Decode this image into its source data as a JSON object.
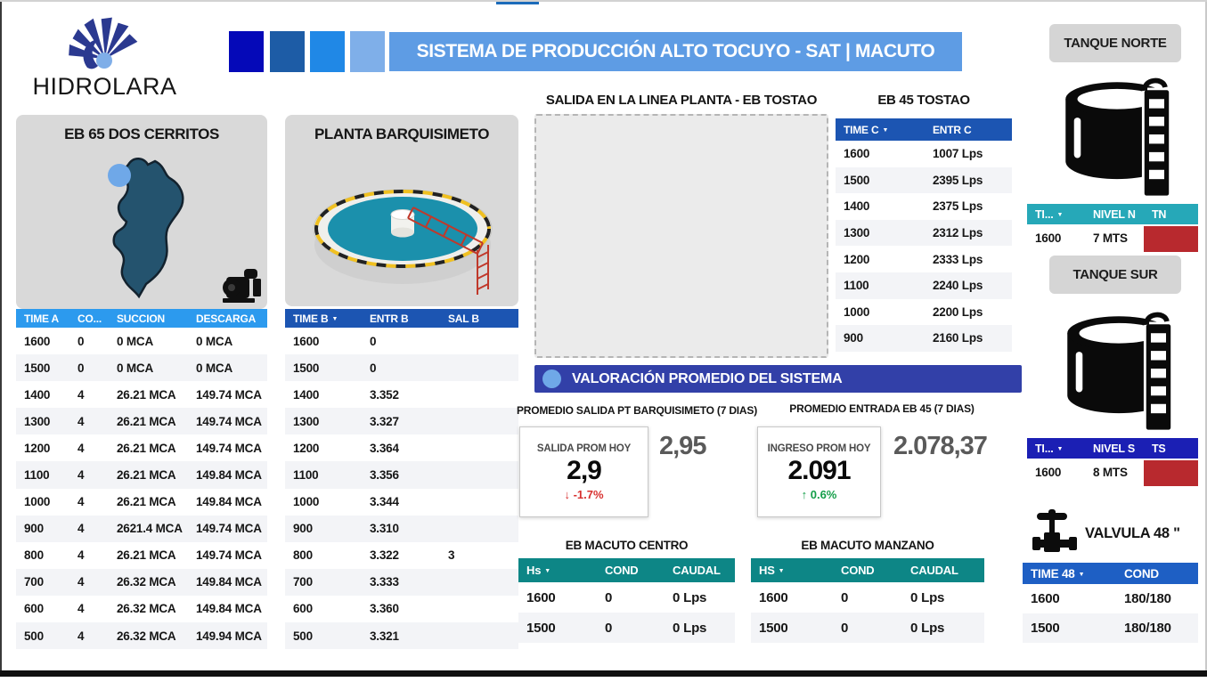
{
  "header": {
    "logo_text": "HIDROLARA",
    "title": "SISTEMA DE PRODUCCIÓN ALTO TOCUYO - SAT | MACUTO",
    "square_colors": [
      "#0509b8",
      "#1d5ca6",
      "#2088e6",
      "#7fafe9"
    ],
    "banner_color": "#5e9ce4"
  },
  "eb65": {
    "title": "EB 65 DOS CERRITOS",
    "table": {
      "headers": [
        "TIME A",
        "CO...",
        "SUCCION",
        "DESCARGA"
      ],
      "rows": [
        [
          "1600",
          "0",
          "0 MCA",
          "0 MCA"
        ],
        [
          "1500",
          "0",
          "0 MCA",
          "0 MCA"
        ],
        [
          "1400",
          "4",
          "26.21 MCA",
          "149.74 MCA"
        ],
        [
          "1300",
          "4",
          "26.21 MCA",
          "149.74 MCA"
        ],
        [
          "1200",
          "4",
          "26.21 MCA",
          "149.74 MCA"
        ],
        [
          "1100",
          "4",
          "26.21 MCA",
          "149.84 MCA"
        ],
        [
          "1000",
          "4",
          "26.21 MCA",
          "149.84 MCA"
        ],
        [
          "900",
          "4",
          "2621.4 MCA",
          "149.74 MCA"
        ],
        [
          "800",
          "4",
          "26.21 MCA",
          "149.74 MCA"
        ],
        [
          "700",
          "4",
          "26.32 MCA",
          "149.84 MCA"
        ],
        [
          "600",
          "4",
          "26.32 MCA",
          "149.84 MCA"
        ],
        [
          "500",
          "4",
          "26.32 MCA",
          "149.94 MCA"
        ]
      ],
      "header_color": "#2c9aee"
    }
  },
  "planta": {
    "title": "PLANTA BARQUISIMETO",
    "table": {
      "headers": [
        "TIME B",
        "ENTR B",
        "SAL B"
      ],
      "rows": [
        [
          "1600",
          "0",
          ""
        ],
        [
          "1500",
          "0",
          ""
        ],
        [
          "1400",
          "3.352",
          ""
        ],
        [
          "1300",
          "3.327",
          ""
        ],
        [
          "1200",
          "3.364",
          ""
        ],
        [
          "1100",
          "3.356",
          ""
        ],
        [
          "1000",
          "3.344",
          ""
        ],
        [
          "900",
          "3.310",
          ""
        ],
        [
          "800",
          "3.322",
          "3"
        ],
        [
          "700",
          "3.333",
          ""
        ],
        [
          "600",
          "3.360",
          ""
        ],
        [
          "500",
          "3.321",
          ""
        ]
      ],
      "header_color": "#1c55b2"
    }
  },
  "salida_linea": {
    "title": "SALIDA EN LA LINEA PLANTA - EB TOSTAO"
  },
  "eb45": {
    "title": "EB 45 TOSTAO",
    "table": {
      "headers": [
        "TIME C",
        "ENTR C"
      ],
      "rows": [
        [
          "1600",
          "1007 Lps"
        ],
        [
          "1500",
          "2395 Lps"
        ],
        [
          "1400",
          "2375 Lps"
        ],
        [
          "1300",
          "2312 Lps"
        ],
        [
          "1200",
          "2333 Lps"
        ],
        [
          "1100",
          "2240 Lps"
        ],
        [
          "1000",
          "2200 Lps"
        ],
        [
          "900",
          "2160 Lps"
        ]
      ],
      "header_color": "#1c55b2"
    }
  },
  "valoracion": {
    "banner": "VALORACIÓN PROMEDIO DEL SISTEMA",
    "salida": {
      "label": "PROMEDIO SALIDA PT BARQUISIMETO (7 DIAS)",
      "card_title": "SALIDA PROM HOY",
      "card_value": "2,9",
      "delta_arrow": "↓",
      "delta": "-1.7%",
      "side_value": "2,95"
    },
    "entrada": {
      "label": "PROMEDIO ENTRADA EB 45 (7 DIAS)",
      "card_title": "INGRESO PROM HOY",
      "card_value": "2.091",
      "delta_arrow": "↑",
      "delta": "0.6%",
      "side_value": "2.078,37"
    }
  },
  "macuto_centro": {
    "title": "EB MACUTO CENTRO",
    "table": {
      "headers": [
        "Hs",
        "COND",
        "CAUDAL"
      ],
      "rows": [
        [
          "1600",
          "0",
          "0 Lps"
        ],
        [
          "1500",
          "0",
          "0 Lps"
        ]
      ],
      "header_color": "#0d8686"
    }
  },
  "macuto_manzano": {
    "title": "EB MACUTO MANZANO",
    "table": {
      "headers": [
        "HS",
        "COND",
        "CAUDAL"
      ],
      "rows": [
        [
          "1600",
          "0",
          "0 Lps"
        ],
        [
          "1500",
          "0",
          "0 Lps"
        ]
      ],
      "header_color": "#0d8686"
    }
  },
  "tanque_norte": {
    "title": "TANQUE NORTE",
    "table": {
      "headers": [
        "TI...",
        "NIVEL N",
        "TN"
      ],
      "rows": [
        [
          "1600",
          "7 MTS",
          ""
        ]
      ],
      "header_color": "#26a8b8",
      "status_color": "#b8292e"
    }
  },
  "tanque_sur": {
    "title": "TANQUE SUR",
    "table": {
      "headers": [
        "TI...",
        "NIVEL S",
        "TS"
      ],
      "rows": [
        [
          "1600",
          "8 MTS",
          ""
        ]
      ],
      "header_color": "#1b1fb4",
      "status_color": "#b8292e"
    }
  },
  "valvula": {
    "title": "VALVULA 48 \"",
    "table": {
      "headers": [
        "TIME 48",
        "COND"
      ],
      "rows": [
        [
          "1600",
          "180/180"
        ],
        [
          "1500",
          "180/180"
        ]
      ],
      "header_color": "#1e5fc4"
    }
  }
}
